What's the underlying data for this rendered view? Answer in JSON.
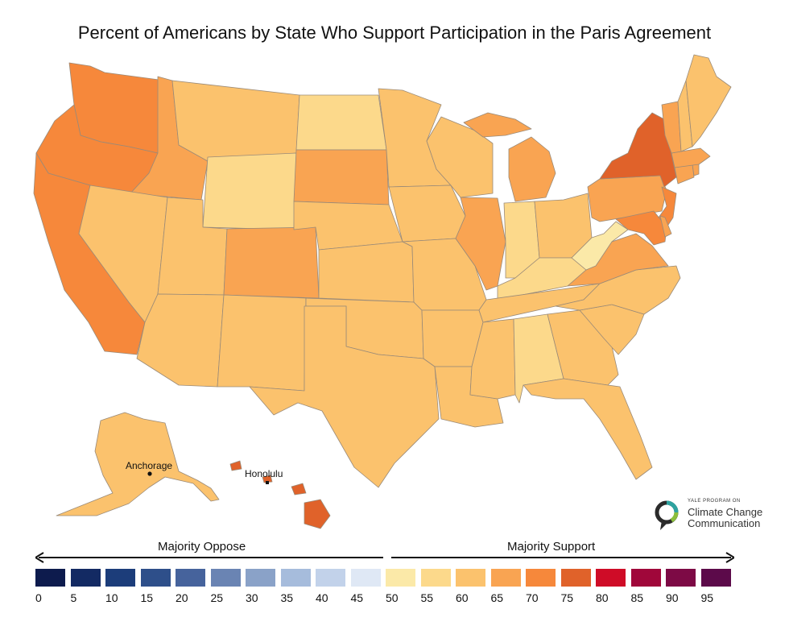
{
  "title": "Percent of Americans by State Who Support Participation in the Paris Agreement",
  "cities": {
    "anchorage": "Anchorage",
    "honolulu": "Honolulu"
  },
  "legend": {
    "oppose_label": "Majority Oppose",
    "support_label": "Majority Support",
    "ticks": [
      "0",
      "5",
      "10",
      "15",
      "20",
      "25",
      "30",
      "35",
      "40",
      "45",
      "50",
      "55",
      "60",
      "65",
      "70",
      "75",
      "80",
      "85",
      "90",
      "95"
    ],
    "colors": [
      "#0d1b4d",
      "#132a63",
      "#1c3d7a",
      "#2e4f8a",
      "#46639c",
      "#6a84b3",
      "#8aa2c8",
      "#a6bcdc",
      "#c2d2ea",
      "#dfe8f5",
      "#fbe9a8",
      "#fcd98b",
      "#fbc26d",
      "#f9a452",
      "#f6883b",
      "#e0622a",
      "#cf0c27",
      "#a0073a",
      "#7d0a45",
      "#5c0a4a"
    ]
  },
  "state_colors": {
    "WA": "#f6883b",
    "OR": "#f6883b",
    "CA": "#f6883b",
    "ID": "#f9a452",
    "NV": "#fbc26d",
    "MT": "#fbc26d",
    "WY": "#fcd98b",
    "UT": "#fbc26d",
    "AZ": "#fbc26d",
    "CO": "#f9a452",
    "NM": "#fbc26d",
    "ND": "#fcd98b",
    "SD": "#f9a452",
    "NE": "#fbc26d",
    "KS": "#fbc26d",
    "OK": "#fbc26d",
    "TX": "#fbc26d",
    "MN": "#fbc26d",
    "IA": "#fbc26d",
    "MO": "#fbc26d",
    "AR": "#fbc26d",
    "LA": "#fbc26d",
    "WI": "#fbc26d",
    "IL": "#f9a452",
    "MI": "#f9a452",
    "IN": "#fcd98b",
    "OH": "#fbc26d",
    "KY": "#fcd98b",
    "TN": "#fbc26d",
    "MS": "#fbc26d",
    "AL": "#fcd98b",
    "GA": "#fbc26d",
    "FL": "#fbc26d",
    "SC": "#fbc26d",
    "NC": "#fbc26d",
    "VA": "#f9a452",
    "WV": "#fbe9a8",
    "PA": "#f9a452",
    "NY": "#e0622a",
    "NJ": "#f6883b",
    "MD": "#f6883b",
    "DE": "#f9a452",
    "CT": "#f9a452",
    "RI": "#f9a452",
    "MA": "#f9a452",
    "VT": "#f9a452",
    "NH": "#fbc26d",
    "ME": "#fbc26d",
    "AK": "#fbc26d",
    "HI": "#e0622a"
  },
  "logo": {
    "small_text": "YALE PROGRAM ON",
    "line1": "Climate Change",
    "line2": "Communication"
  }
}
